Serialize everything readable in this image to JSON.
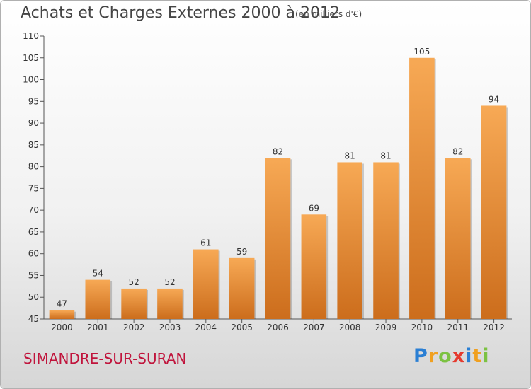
{
  "header": {
    "title": "Achats et Charges Externes 2000 à 2012",
    "unit": "(en milliers d'€)"
  },
  "footer": {
    "location": "SIMANDRE-SUR-SURAN",
    "logo_letters": [
      {
        "ch": "P",
        "color": "#2a7fd4"
      },
      {
        "ch": "r",
        "color": "#f0a020"
      },
      {
        "ch": "o",
        "color": "#7cc242"
      },
      {
        "ch": "x",
        "color": "#e53a2e"
      },
      {
        "ch": "i",
        "color": "#2a7fd4"
      },
      {
        "ch": "t",
        "color": "#f0a020"
      },
      {
        "ch": "i",
        "color": "#7cc242"
      }
    ]
  },
  "colors": {
    "bar_light": "#f7a955",
    "bar_dark": "#cc6d1c",
    "axis": "#555555"
  },
  "chart_data": {
    "type": "bar",
    "categories": [
      "2000",
      "2001",
      "2002",
      "2003",
      "2004",
      "2005",
      "2006",
      "2007",
      "2008",
      "2009",
      "2010",
      "2011",
      "2012"
    ],
    "values": [
      47,
      54,
      52,
      52,
      61,
      59,
      82,
      69,
      81,
      81,
      105,
      82,
      94
    ],
    "title": "Achats et Charges Externes 2000 à 2012",
    "xlabel": "",
    "ylabel": "",
    "ylim": [
      45,
      110
    ],
    "yticks": [
      45,
      50,
      55,
      60,
      65,
      70,
      75,
      80,
      85,
      90,
      95,
      100,
      105,
      110
    ],
    "grid": false
  }
}
